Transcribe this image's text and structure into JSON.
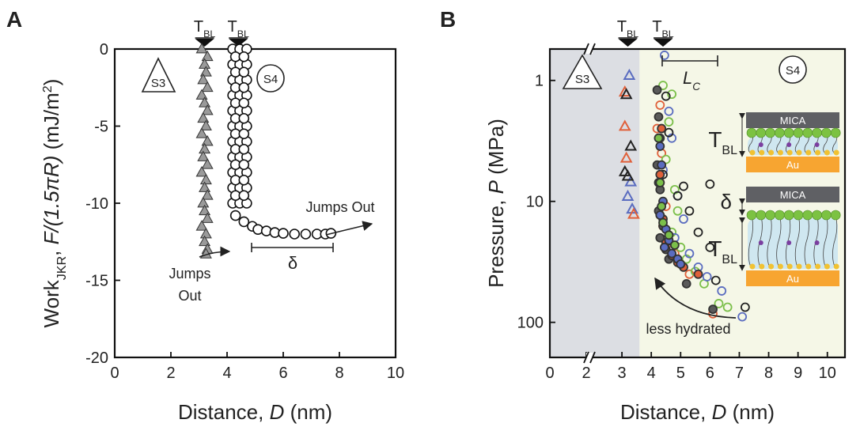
{
  "chart_data": [
    {
      "type": "scatter",
      "panel_label": "A",
      "xlabel": [
        {
          "text": "Distance, "
        },
        {
          "text": "D",
          "style": "italic"
        },
        {
          "text": " (nm)"
        }
      ],
      "ylabel": [
        {
          "text": "Work"
        },
        {
          "text": "JKR",
          "style": "sub"
        },
        {
          "text": ", "
        },
        {
          "text": "F/(1.5πR)",
          "style": "italic"
        },
        {
          "text": " (mJ/m"
        },
        {
          "text": "2",
          "style": "sup"
        },
        {
          "text": ")"
        }
      ],
      "xlim": [
        0,
        10
      ],
      "ylim": [
        -20,
        0
      ],
      "xticks": [
        0,
        2,
        4,
        6,
        8,
        10
      ],
      "yticks": [
        0,
        -5,
        -10,
        -15,
        -20
      ],
      "tbl_markers": [
        3.2,
        4.4
      ],
      "tbl_label": {
        "text": "T",
        "sub": "BL"
      },
      "region_labels": [
        "S3",
        "S4"
      ],
      "notes": {
        "jumps_out_right": "Jumps Out",
        "jumps_out_left": [
          "Jumps",
          "Out"
        ],
        "delta": "δ"
      },
      "series": [
        {
          "marker": "triangle",
          "filled": true,
          "color": "#9a9a9a",
          "x": [
            3.1,
            3.3,
            3.2,
            3.25,
            3.15,
            3.3,
            3.1,
            3.2,
            3.3,
            3.15,
            3.25,
            3.1,
            3.3,
            3.2,
            3.15,
            3.3,
            3.1,
            3.25,
            3.2,
            3.3,
            3.15,
            3.2,
            3.3,
            3.1,
            3.25,
            3.2,
            3.3,
            3.25
          ],
          "values": [
            0,
            -0.5,
            -1,
            -1.5,
            -2,
            -2.5,
            -3,
            -3.5,
            -4,
            -4.5,
            -5,
            -5.5,
            -6,
            -6.5,
            -7,
            -7.5,
            -8,
            -8.5,
            -9,
            -9.5,
            -10,
            -10.5,
            -11,
            -11.5,
            -12,
            -12.5,
            -13,
            -13.3
          ]
        },
        {
          "marker": "circle",
          "filled": false,
          "color": "#111111",
          "x": [
            4.2,
            4.45,
            4.7,
            4.2,
            4.45,
            4.7,
            4.2,
            4.45,
            4.7,
            4.2,
            4.45,
            4.7,
            4.2,
            4.45,
            4.7,
            4.2,
            4.45,
            4.7,
            4.2,
            4.45,
            4.7,
            4.2,
            4.45,
            4.7,
            4.2,
            4.45,
            4.7,
            4.2,
            4.45,
            4.7,
            4.2,
            4.45,
            4.7,
            4.3,
            4.6,
            4.3,
            4.6,
            4.3,
            4.6,
            4.3,
            4.6,
            4.3,
            4.6,
            4.3,
            4.6,
            4.3,
            4.6,
            4.3,
            4.6,
            4.3,
            4.6,
            4.3,
            4.6,
            4.3,
            4.6,
            4.9,
            5.1,
            5.4,
            5.7,
            6.0,
            6.4,
            6.8,
            7.2,
            7.5,
            7.7
          ],
          "values": [
            0,
            0,
            0,
            -1,
            -1,
            -1,
            -2,
            -2,
            -2,
            -3,
            -3,
            -3,
            -4,
            -4,
            -4,
            -5,
            -5,
            -5,
            -6,
            -6,
            -6,
            -7,
            -7,
            -7,
            -8,
            -8,
            -8,
            -9,
            -9,
            -9,
            -10,
            -10,
            -10,
            -0.5,
            -0.5,
            -1.5,
            -1.5,
            -2.5,
            -2.5,
            -3.5,
            -3.5,
            -4.5,
            -4.5,
            -5.5,
            -5.5,
            -6.5,
            -6.5,
            -7.5,
            -7.5,
            -8.5,
            -8.5,
            -9.5,
            -9.5,
            -10.8,
            -11.2,
            -11.5,
            -11.7,
            -11.8,
            -11.9,
            -11.95,
            -12,
            -12,
            -12,
            -12,
            -11.95
          ]
        }
      ]
    },
    {
      "type": "scatter",
      "panel_label": "B",
      "xlabel": [
        {
          "text": "Distance, "
        },
        {
          "text": "D",
          "style": "italic"
        },
        {
          "text": " (nm)"
        }
      ],
      "ylabel": [
        {
          "text": "Pressure, "
        },
        {
          "text": "P",
          "style": "italic"
        },
        {
          "text": " (MPa)"
        }
      ],
      "xlim": [
        0,
        10.6
      ],
      "xbreak": 2,
      "ylim": [
        0.55,
        195
      ],
      "log_y": true,
      "y_reversed": true,
      "xticks": [
        0,
        2,
        3,
        4,
        5,
        6,
        7,
        8,
        9,
        10
      ],
      "yticks": [
        1,
        10,
        100
      ],
      "shaded": [
        {
          "x": [
            0,
            3.6
          ],
          "color": "#dcdee3"
        },
        {
          "x": [
            3.6,
            10.6
          ],
          "color": "#f5f7e7"
        }
      ],
      "tbl_markers": [
        3.2,
        4.4
      ],
      "tbl_label": {
        "text": "T",
        "sub": "BL"
      },
      "region_labels": [
        "S3",
        "S4"
      ],
      "lc_label": {
        "text": "L",
        "sub": "C"
      },
      "note": "less hydrated",
      "insets": [
        {
          "mica": "MICA",
          "au": "Au",
          "tbl": "T",
          "tbl_sub": "BL"
        },
        {
          "mica": "MICA",
          "au": "Au",
          "tbl": "T",
          "tbl_sub": "BL",
          "delta": "δ"
        }
      ],
      "series": [
        {
          "marker": "triangle",
          "filled": false,
          "color": "#5a6cc0",
          "x": [
            3.25,
            3.3,
            3.2,
            3.35
          ],
          "values": [
            0.91,
            6.9,
            9.1,
            11.6
          ]
        },
        {
          "marker": "triangle",
          "filled": false,
          "color": "#e0603a",
          "x": [
            3.1,
            3.1,
            3.15,
            3.4
          ],
          "values": [
            1.25,
            2.4,
            4.4,
            12.8
          ]
        },
        {
          "marker": "triangle",
          "filled": false,
          "color": "#222222",
          "x": [
            3.15,
            3.3,
            3.1,
            3.2
          ],
          "values": [
            1.31,
            3.5,
            5.7,
            6.2
          ]
        },
        {
          "marker": "circle",
          "filled": false,
          "color": "#e0603a",
          "x": [
            4.3,
            4.2,
            4.35,
            4.3,
            4.5,
            4.4,
            4.6,
            4.8,
            5.0,
            5.3,
            6.1
          ],
          "values": [
            1.6,
            2.5,
            4,
            7,
            11,
            16,
            22,
            27,
            33,
            40,
            85
          ]
        },
        {
          "marker": "circle",
          "filled": false,
          "color": "#7bbf4a",
          "x": [
            4.4,
            4.7,
            4.6,
            4.5,
            4.8,
            4.9,
            4.7,
            5.0,
            5.2,
            5.5,
            5.8,
            6.3,
            6.6
          ],
          "values": [
            1.1,
            1.3,
            2.2,
            4.5,
            8,
            12,
            18,
            24,
            30,
            38,
            48,
            70,
            75
          ]
        },
        {
          "marker": "circle",
          "filled": false,
          "color": "#5a6cc0",
          "x": [
            4.45,
            4.6,
            4.7,
            4.4,
            4.9,
            5.1,
            4.8,
            5.3,
            5.6,
            5.9,
            6.4,
            7.1
          ],
          "values": [
            0.62,
            1.8,
            3,
            5.5,
            9,
            14,
            20,
            27,
            35,
            42,
            55,
            90
          ]
        },
        {
          "marker": "circle",
          "filled": false,
          "color": "#222222",
          "x": [
            4.5,
            4.6,
            4.4,
            4.9,
            5.1,
            6.0,
            5.3,
            5.6,
            6.0,
            6.2,
            7.2
          ],
          "values": [
            1.35,
            2.7,
            6,
            9,
            7.5,
            7.2,
            12,
            18,
            24,
            45,
            75
          ]
        },
        {
          "marker": "circle",
          "filled": true,
          "color": "#5a5a5a",
          "x": [
            4.2,
            4.25,
            4.3,
            4.2,
            4.3,
            4.25,
            4.4,
            4.3,
            4.5,
            4.6,
            5.2,
            6.1
          ],
          "values": [
            1.2,
            2,
            3,
            5,
            8,
            12,
            16,
            20,
            25,
            30,
            48,
            78
          ]
        },
        {
          "marker": "circle",
          "filled": true,
          "color": "#e0603a",
          "x": [
            4.35,
            4.3,
            4.4,
            4.5,
            4.7,
            4.9,
            5.1,
            5.6
          ],
          "values": [
            2.5,
            6,
            14,
            22,
            28,
            32,
            35,
            40
          ]
        },
        {
          "marker": "circle",
          "filled": true,
          "color": "#5a6cc0",
          "x": [
            4.3,
            4.35,
            4.25,
            4.4,
            4.3,
            4.5,
            4.6,
            4.45,
            4.7,
            4.9,
            5.0
          ],
          "values": [
            3.5,
            5,
            7,
            10,
            13,
            17,
            21,
            24,
            27,
            30,
            33
          ]
        },
        {
          "marker": "circle",
          "filled": true,
          "color": "#7bbf4a",
          "x": [
            4.25,
            4.3,
            4.35,
            4.4,
            4.6,
            4.8
          ],
          "values": [
            3,
            7,
            11,
            15,
            19,
            23
          ]
        }
      ]
    }
  ]
}
